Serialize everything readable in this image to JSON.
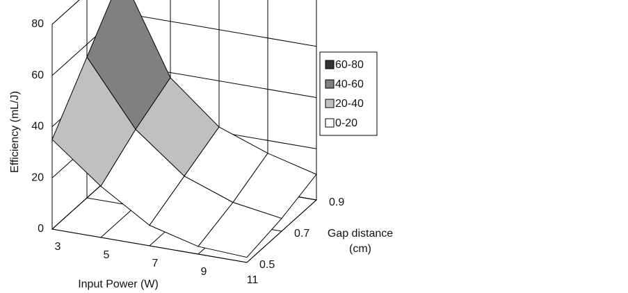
{
  "chart_data": {
    "type": "surface",
    "xlabel": "Input Power (W)",
    "ylabel": "Gap distance (cm)",
    "zlabel": "Efficiency (mL/J)",
    "x": [
      3,
      5,
      7,
      9,
      11
    ],
    "y": [
      0.5,
      0.7,
      0.9
    ],
    "values": [
      [
        35,
        20,
        8,
        3,
        2
      ],
      [
        55,
        30,
        15,
        8,
        5
      ],
      [
        75,
        38,
        22,
        15,
        10
      ]
    ],
    "zlim": [
      0,
      80
    ],
    "zticks": [
      0,
      20,
      40,
      60,
      80
    ],
    "grid": true,
    "legend": [
      {
        "label": "60-80",
        "color": "#333333"
      },
      {
        "label": "40-60",
        "color": "#808080"
      },
      {
        "label": "20-40",
        "color": "#c0c0c0"
      },
      {
        "label": "0-20",
        "color": "#ffffff"
      }
    ]
  }
}
